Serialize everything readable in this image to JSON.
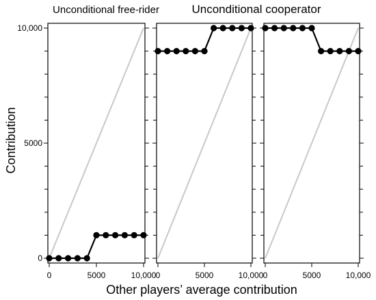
{
  "chart_data": [
    {
      "type": "line",
      "title": "Unconditional free-rider",
      "x": [
        0,
        1000,
        2000,
        3000,
        4000,
        5000,
        6000,
        7000,
        8000,
        9000,
        10000
      ],
      "series": [
        {
          "values": [
            0,
            0,
            0,
            0,
            0,
            1000,
            1000,
            1000,
            1000,
            1000,
            1000
          ]
        }
      ],
      "reference_line": "y = x",
      "xlim": [
        0,
        10000
      ],
      "ylim": [
        0,
        10000
      ],
      "x_ticks": [
        "0",
        "5000",
        "10,000"
      ],
      "y_ticks": [
        "0",
        "5000",
        "10,000"
      ]
    },
    {
      "type": "line",
      "title": "",
      "x": [
        0,
        1000,
        2000,
        3000,
        4000,
        5000,
        6000,
        7000,
        8000,
        9000,
        10000
      ],
      "series": [
        {
          "values": [
            9000,
            9000,
            9000,
            9000,
            9000,
            9000,
            10000,
            10000,
            10000,
            10000,
            10000
          ]
        }
      ],
      "reference_line": "y = x",
      "xlim": [
        0,
        10000
      ],
      "ylim": [
        0,
        10000
      ],
      "x_ticks": [
        "0",
        "5000",
        "10,000"
      ]
    },
    {
      "type": "line",
      "title": "",
      "x": [
        0,
        1000,
        2000,
        3000,
        4000,
        5000,
        6000,
        7000,
        8000,
        9000,
        10000
      ],
      "series": [
        {
          "values": [
            10000,
            10000,
            10000,
            10000,
            10000,
            10000,
            9000,
            9000,
            9000,
            9000,
            9000
          ]
        }
      ],
      "reference_line": "y = x",
      "xlim": [
        0,
        10000
      ],
      "ylim": [
        0,
        10000
      ],
      "x_ticks": [
        "0",
        "5000",
        "10,000"
      ]
    }
  ],
  "shared_title": "Unconditional cooperator",
  "ylabel": "Contribution",
  "xlabel": "Other players’ average contribution",
  "grid": false,
  "colors": {
    "data": "#000000",
    "reference": "#c8c8c8"
  }
}
